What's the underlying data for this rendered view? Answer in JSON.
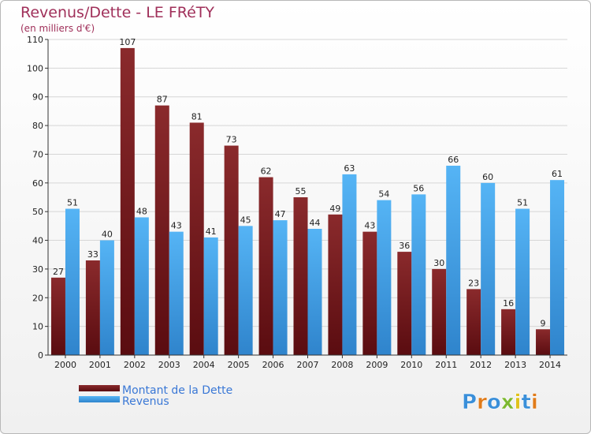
{
  "chart_data": {
    "type": "bar",
    "title": "Revenus/Dette - LE FRéTY",
    "subtitle": "(en milliers d'€)",
    "categories": [
      "2000",
      "2001",
      "2002",
      "2003",
      "2004",
      "2005",
      "2006",
      "2007",
      "2008",
      "2009",
      "2010",
      "2011",
      "2012",
      "2013",
      "2014"
    ],
    "series": [
      {
        "name": "Montant de la Dette",
        "color": "#7a1a1f",
        "values": [
          27,
          33,
          107,
          87,
          81,
          73,
          62,
          55,
          49,
          43,
          36,
          30,
          23,
          16,
          9
        ]
      },
      {
        "name": "Revenus",
        "color": "#3f9be5",
        "values": [
          51,
          40,
          48,
          43,
          41,
          45,
          47,
          44,
          63,
          54,
          56,
          66,
          60,
          51,
          61
        ]
      }
    ],
    "ylim": [
      0,
      110
    ],
    "yticks": [
      0,
      10,
      20,
      30,
      40,
      50,
      60,
      70,
      80,
      90,
      100,
      110
    ],
    "grid": true,
    "legend": "bottom-left"
  },
  "logo": {
    "text": "Proxiti"
  }
}
